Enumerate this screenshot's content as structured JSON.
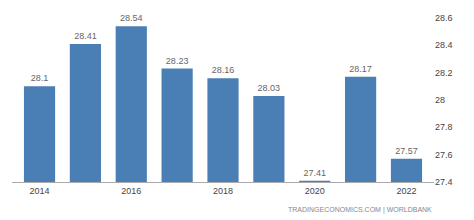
{
  "chart_data": {
    "type": "bar",
    "x": [
      2014,
      2015,
      2016,
      2017,
      2018,
      2019,
      2020,
      2021,
      2022
    ],
    "values": [
      28.1,
      28.41,
      28.54,
      28.23,
      28.16,
      28.03,
      27.41,
      28.17,
      27.57
    ],
    "color": "#4a7fb5",
    "xlim": [
      2013.4,
      2022.6
    ],
    "xticks": [
      2014,
      2016,
      2018,
      2020,
      2022
    ],
    "ylim": [
      27.4,
      28.6
    ],
    "yticks": [
      27.4,
      27.6,
      27.8,
      28,
      28.2,
      28.4,
      28.6
    ],
    "grid": false,
    "data_labels": true,
    "annotations": [
      "TRADINGECONOMICS.COM | WORLDBANK"
    ]
  }
}
